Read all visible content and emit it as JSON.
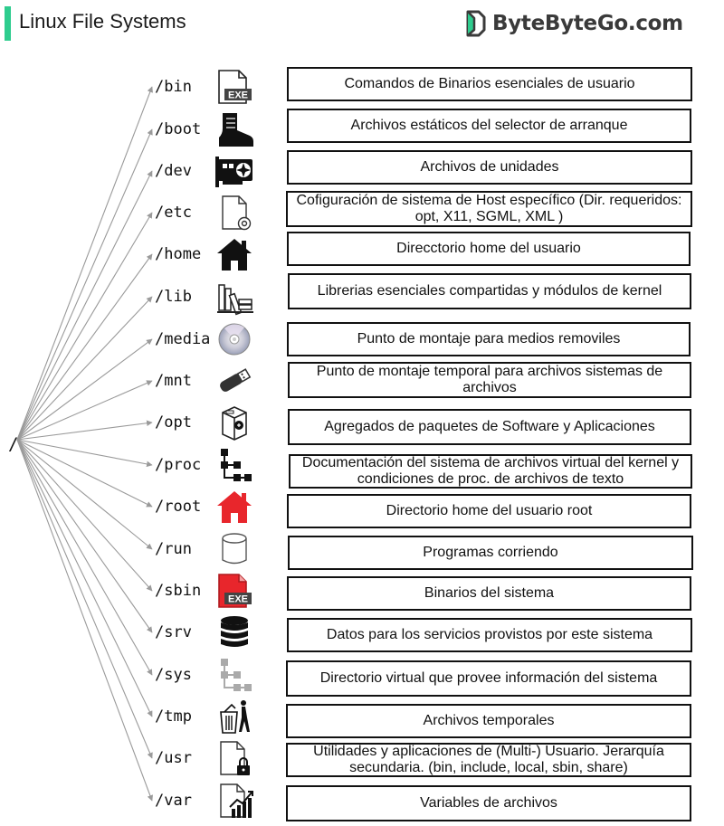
{
  "header": {
    "title": "Linux File Systems",
    "brand": "ByteByteGo.com"
  },
  "root_label": "/",
  "entries": [
    {
      "dir": "/bin",
      "desc": "Comandos de Binarios esenciales de usuario",
      "icon": "exe-file-icon"
    },
    {
      "dir": "/boot",
      "desc": "Archivos estáticos del selector de arranque",
      "icon": "boot-icon"
    },
    {
      "dir": "/dev",
      "desc": "Archivos de unidades",
      "icon": "graphics-card-icon"
    },
    {
      "dir": "/etc",
      "desc": "Cofiguración de sistema de Host específico (Dir. requeridos: opt, X11, SGML, XML )",
      "icon": "config-file-icon"
    },
    {
      "dir": "/home",
      "desc": "Direcctorio home del usuario",
      "icon": "home-icon"
    },
    {
      "dir": "/lib",
      "desc": "Librerias esenciales compartidas y módulos de kernel",
      "icon": "library-books-icon"
    },
    {
      "dir": "/media",
      "desc": "Punto de montaje para medios removiles",
      "icon": "cd-disc-icon"
    },
    {
      "dir": "/mnt",
      "desc": "Punto de montaje temporal para archivos sistemas de archivos",
      "icon": "usb-drive-icon"
    },
    {
      "dir": "/opt",
      "desc": "Agregados de paquetes de Software y Aplicaciones",
      "icon": "package-icon"
    },
    {
      "dir": "/proc",
      "desc": "Documentación del sistema de archivos virtual del kernel y condiciones de proc. de archivos de texto",
      "icon": "process-tree-icon"
    },
    {
      "dir": "/root",
      "desc": "Directorio home del usuario root",
      "icon": "root-home-icon"
    },
    {
      "dir": "/run",
      "desc": "Programas corriendo",
      "icon": "cylinder-icon"
    },
    {
      "dir": "/sbin",
      "desc": "Binarios del sistema",
      "icon": "system-exe-file-icon"
    },
    {
      "dir": "/srv",
      "desc": "Datos para los servicios provistos por este sistema",
      "icon": "database-icon"
    },
    {
      "dir": "/sys",
      "desc": "Directorio virtual que provee información del sistema",
      "icon": "virtual-tree-icon"
    },
    {
      "dir": "/tmp",
      "desc": "Archivos temporales",
      "icon": "trash-icon"
    },
    {
      "dir": "/usr",
      "desc": "Utilidades y aplicaciones de (Multi-) Usuario. Jerarquía secundaria. (bin, include, local, sbin, share)",
      "icon": "locked-file-icon"
    },
    {
      "dir": "/var",
      "desc": "Variables de archivos",
      "icon": "chart-file-icon"
    }
  ],
  "colors": {
    "accent": "#2ecc8e",
    "root_red": "#e8262c",
    "exe_red": "#e8262c",
    "lines": "#9a9a9a"
  }
}
